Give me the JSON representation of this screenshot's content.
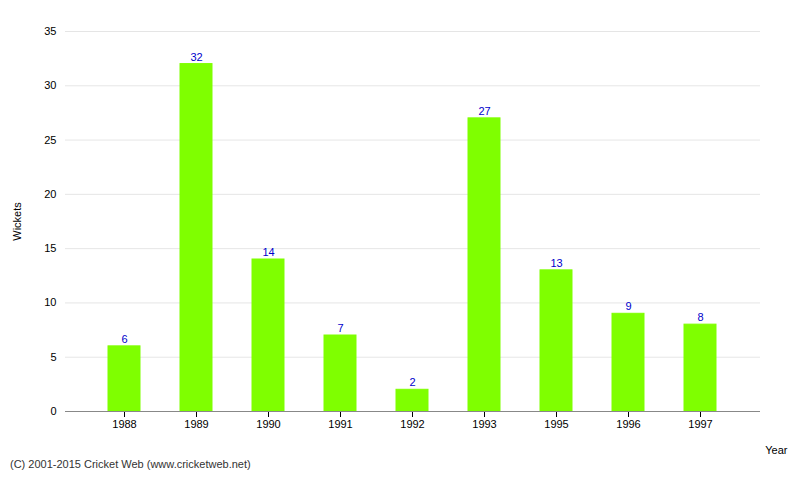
{
  "chart_data": {
    "type": "bar",
    "categories": [
      "1988",
      "1989",
      "1990",
      "1991",
      "1992",
      "1993",
      "1995",
      "1996",
      "1997"
    ],
    "values": [
      6,
      32,
      14,
      7,
      2,
      27,
      13,
      9,
      8
    ],
    "color": "#7fff00",
    "xlabel": "Year",
    "ylabel": "Wickets",
    "ylim": [
      0,
      35
    ],
    "yticks": [
      0,
      5,
      10,
      15,
      20,
      25,
      30,
      35
    ],
    "grid": true,
    "data_labels": true,
    "caption": "(C) 2001-2015 Cricket Web (www.cricketweb.net)"
  }
}
